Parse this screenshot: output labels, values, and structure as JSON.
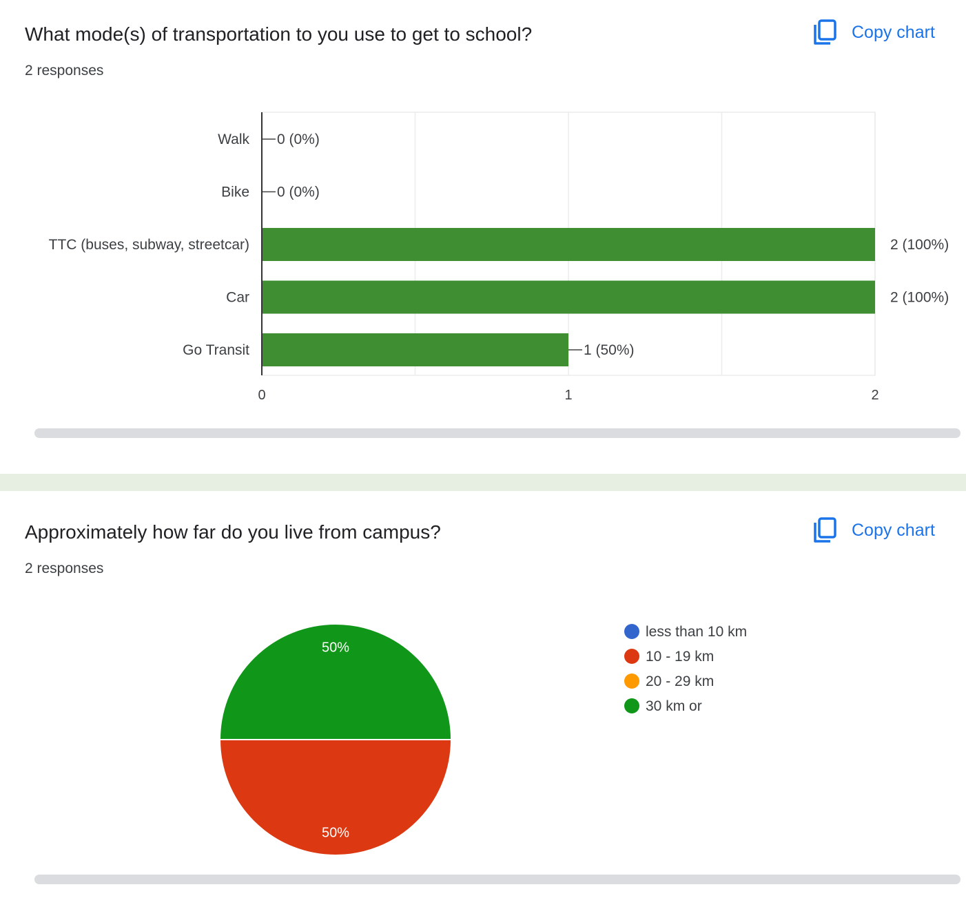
{
  "questions": [
    {
      "title": "What mode(s) of transportation to you use to get to school?",
      "responses": "2 responses",
      "copy_label": "Copy chart"
    },
    {
      "title": "Approximately how far do you live from campus?",
      "responses": "2 responses",
      "copy_label": "Copy chart"
    }
  ],
  "icons": {
    "copy": "copy-icon"
  },
  "colors": {
    "bar": "#3f8f32",
    "accent": "#1a73e8",
    "divider": "#e6efe1"
  },
  "chart_data": [
    {
      "type": "bar",
      "orientation": "horizontal",
      "categories": [
        "Walk",
        "Bike",
        "TTC (buses, subway, streetcar)",
        "Car",
        "Go Transit"
      ],
      "values": [
        0,
        0,
        2,
        2,
        1
      ],
      "data_labels": [
        "0 (0%)",
        "0 (0%)",
        "2 (100%)",
        "2 (100%)",
        "1 (50%)"
      ],
      "xlim": [
        0,
        2
      ],
      "x_ticks": [
        "0",
        "1",
        "2"
      ],
      "grid": true,
      "color": "#3f8f32"
    },
    {
      "type": "pie",
      "labels": [
        "less than 10 km",
        "10 - 19 km",
        "20 - 29 km",
        "30 km or"
      ],
      "values": [
        0,
        50,
        0,
        50
      ],
      "slice_labels": [
        "",
        "50%",
        "",
        "50%"
      ],
      "colors": [
        "#3366cc",
        "#dc3912",
        "#ff9900",
        "#109618"
      ],
      "legend_position": "right"
    }
  ]
}
